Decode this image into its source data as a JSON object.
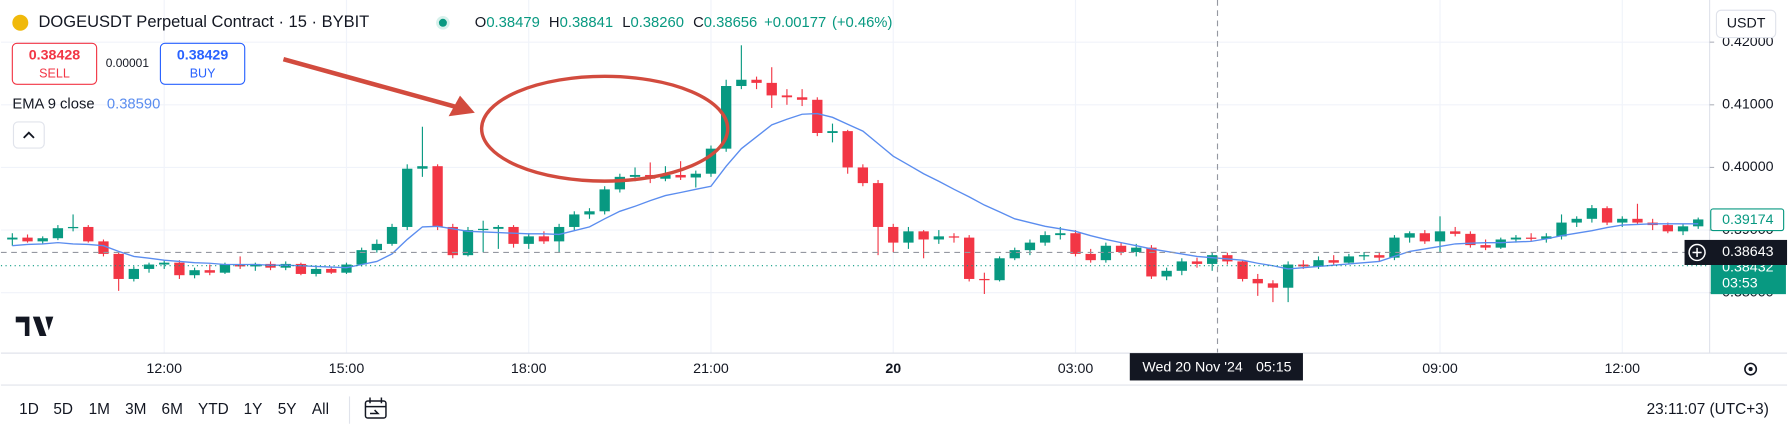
{
  "chart_data": {
    "type": "candlestick",
    "title": "DOGEUSDT Perpetual Contract · 15 · BYBIT",
    "ohlc_legend": [
      {
        "key": "O",
        "value": "0.38479"
      },
      {
        "key": "H",
        "value": "0.38841"
      },
      {
        "key": "L",
        "value": "0.38260"
      },
      {
        "key": "C",
        "value": "0.38656"
      }
    ],
    "change": "+0.00177",
    "change_pct": "(+0.46%)",
    "up_color": "#089981",
    "down_color": "#f23645",
    "x": [
      null,
      null,
      null,
      null,
      null,
      null,
      null,
      null,
      null,
      null,
      "12:00",
      null,
      null,
      null,
      null,
      null,
      null,
      null,
      null,
      null,
      null,
      null,
      "15:00",
      null,
      null,
      null,
      null,
      null,
      null,
      null,
      null,
      null,
      null,
      null,
      "18:00",
      null,
      null,
      null,
      null,
      null,
      null,
      null,
      null,
      null,
      null,
      null,
      "21:00",
      null,
      null,
      null,
      null,
      null,
      null,
      null,
      null,
      null,
      null,
      null,
      "20",
      null,
      null,
      null,
      null,
      null,
      null,
      null,
      null,
      null,
      null,
      null,
      "03:00",
      null,
      null,
      null,
      null,
      null,
      null,
      null,
      null,
      null,
      null,
      null,
      null,
      null,
      null,
      null,
      null,
      null,
      null,
      null,
      null,
      null,
      null,
      null,
      "09:00",
      null,
      null,
      null,
      null,
      null,
      null,
      null,
      null,
      null,
      null,
      null,
      "12:00",
      null,
      null,
      null,
      null,
      null
    ],
    "open": [
      0.3885,
      0.3888,
      0.3882,
      0.3887,
      0.3903,
      0.3905,
      0.3882,
      0.3862,
      0.3822,
      0.3838,
      0.3845,
      0.3848,
      0.3828,
      0.3836,
      0.3832,
      0.3845,
      0.3842,
      0.3846,
      0.384,
      0.3846,
      0.383,
      0.3838,
      0.3832,
      0.3845,
      0.3868,
      0.3878,
      0.3905,
      0.3998,
      0.4002,
      0.3905,
      0.386,
      0.39,
      0.3902,
      0.3905,
      0.3878,
      0.389,
      0.3882,
      0.3905,
      0.3925,
      0.393,
      0.3965,
      0.3985,
      0.3988,
      0.3982,
      0.3988,
      0.3984,
      0.399,
      0.403,
      0.413,
      0.414,
      0.4135,
      0.4115,
      0.4112,
      0.4108,
      0.4055,
      0.4058,
      0.4,
      0.3975,
      0.3905,
      0.388,
      0.3898,
      0.3885,
      0.389,
      0.3888,
      0.3822,
      0.382,
      0.3855,
      0.3868,
      0.388,
      0.3892,
      0.3895,
      0.3862,
      0.3852,
      0.3875,
      0.3865,
      0.3872,
      0.3826,
      0.3835,
      0.385,
      0.3846,
      0.386,
      0.385,
      0.3822,
      0.3815,
      0.3808,
      0.3845,
      0.3842,
      0.3852,
      0.3848,
      0.3858,
      0.386,
      0.3856,
      0.3888,
      0.3895,
      0.3882,
      0.3898,
      0.3894,
      0.3876,
      0.3872,
      0.3885,
      0.3888,
      0.3886,
      0.389,
      0.3912,
      0.3918,
      0.3935,
      0.3912,
      0.3918,
      0.3912,
      0.3908,
      0.3898,
      0.3906
    ],
    "high": [
      0.3895,
      0.3893,
      0.389,
      0.3908,
      0.3925,
      0.3908,
      0.3885,
      0.3865,
      0.3842,
      0.3848,
      0.3852,
      0.3852,
      0.384,
      0.3845,
      0.3848,
      0.3858,
      0.3848,
      0.385,
      0.385,
      0.3848,
      0.3842,
      0.3842,
      0.3848,
      0.3872,
      0.3885,
      0.391,
      0.4005,
      0.4065,
      0.4005,
      0.391,
      0.3905,
      0.3915,
      0.3908,
      0.3908,
      0.3895,
      0.3898,
      0.391,
      0.393,
      0.3935,
      0.397,
      0.399,
      0.4,
      0.4008,
      0.4002,
      0.401,
      0.3995,
      0.4035,
      0.414,
      0.4195,
      0.4145,
      0.416,
      0.4125,
      0.4125,
      0.4112,
      0.407,
      0.406,
      0.4005,
      0.398,
      0.391,
      0.3905,
      0.39,
      0.39,
      0.3895,
      0.3892,
      0.3832,
      0.3858,
      0.3872,
      0.3885,
      0.3898,
      0.3905,
      0.39,
      0.387,
      0.388,
      0.388,
      0.3878,
      0.3876,
      0.384,
      0.3855,
      0.3856,
      0.3865,
      0.3864,
      0.3852,
      0.383,
      0.382,
      0.385,
      0.3852,
      0.3858,
      0.386,
      0.3862,
      0.3865,
      0.3864,
      0.3892,
      0.3898,
      0.39,
      0.3922,
      0.3905,
      0.3898,
      0.3885,
      0.3888,
      0.3892,
      0.3895,
      0.3895,
      0.3925,
      0.3922,
      0.394,
      0.3938,
      0.3922,
      0.3942,
      0.3918,
      0.3912,
      0.391,
      0.392
    ],
    "low": [
      0.3875,
      0.388,
      0.3878,
      0.3884,
      0.3898,
      0.388,
      0.3858,
      0.3803,
      0.3818,
      0.3832,
      0.3838,
      0.3822,
      0.3823,
      0.3828,
      0.383,
      0.3838,
      0.3835,
      0.3836,
      0.3836,
      0.3828,
      0.3826,
      0.383,
      0.383,
      0.3842,
      0.3864,
      0.3875,
      0.39,
      0.3985,
      0.39,
      0.3855,
      0.3858,
      0.3865,
      0.387,
      0.3872,
      0.387,
      0.3878,
      0.3865,
      0.39,
      0.3918,
      0.3925,
      0.396,
      0.3978,
      0.3975,
      0.3978,
      0.398,
      0.3968,
      0.3985,
      0.4025,
      0.4125,
      0.4125,
      0.4095,
      0.41,
      0.4098,
      0.405,
      0.404,
      0.399,
      0.397,
      0.386,
      0.3865,
      0.387,
      0.3855,
      0.3878,
      0.388,
      0.3818,
      0.3798,
      0.3818,
      0.3852,
      0.386,
      0.3875,
      0.3885,
      0.3858,
      0.3848,
      0.3848,
      0.386,
      0.3858,
      0.3822,
      0.382,
      0.3828,
      0.384,
      0.3835,
      0.3845,
      0.3818,
      0.3795,
      0.3785,
      0.3785,
      0.3838,
      0.3838,
      0.3845,
      0.3845,
      0.3852,
      0.385,
      0.3852,
      0.388,
      0.3878,
      0.3865,
      0.389,
      0.3872,
      0.3868,
      0.387,
      0.388,
      0.3882,
      0.388,
      0.3885,
      0.3905,
      0.3912,
      0.3908,
      0.3905,
      0.391,
      0.39,
      0.3895,
      0.3892,
      0.3902
    ],
    "close": [
      0.3888,
      0.3882,
      0.3887,
      0.3903,
      0.3905,
      0.3882,
      0.3862,
      0.3822,
      0.3838,
      0.3845,
      0.3848,
      0.3828,
      0.3836,
      0.3832,
      0.3845,
      0.3842,
      0.3846,
      0.384,
      0.3846,
      0.383,
      0.3838,
      0.3832,
      0.3845,
      0.3868,
      0.3878,
      0.3905,
      0.3998,
      0.4002,
      0.3905,
      0.386,
      0.39,
      0.3902,
      0.3905,
      0.3878,
      0.389,
      0.3882,
      0.3905,
      0.3925,
      0.393,
      0.3965,
      0.3985,
      0.3988,
      0.3982,
      0.3988,
      0.3984,
      0.399,
      0.403,
      0.413,
      0.414,
      0.4135,
      0.4115,
      0.4112,
      0.4108,
      0.4055,
      0.4058,
      0.4,
      0.3975,
      0.3905,
      0.388,
      0.3898,
      0.3885,
      0.389,
      0.3888,
      0.3822,
      0.382,
      0.3855,
      0.3868,
      0.388,
      0.3892,
      0.3895,
      0.3862,
      0.3852,
      0.3875,
      0.3865,
      0.3872,
      0.3826,
      0.3835,
      0.385,
      0.3846,
      0.386,
      0.385,
      0.3822,
      0.3815,
      0.3808,
      0.3845,
      0.3842,
      0.3852,
      0.3848,
      0.3858,
      0.386,
      0.3856,
      0.3888,
      0.3895,
      0.3882,
      0.3898,
      0.3894,
      0.3876,
      0.3872,
      0.3885,
      0.3888,
      0.3886,
      0.389,
      0.3912,
      0.3918,
      0.3935,
      0.3912,
      0.3918,
      0.3912,
      0.3908,
      0.3898,
      0.3906,
      0.3917
    ],
    "ema": {
      "name": "EMA 9 close",
      "value": 0.3859,
      "value_label": "0.38590",
      "color": "#5b8def",
      "values": [
        0.3875,
        0.3877,
        0.3878,
        0.388,
        0.3878,
        0.3877,
        0.3875,
        0.3866,
        0.3858,
        0.3855,
        0.3852,
        0.385,
        0.3848,
        0.3847,
        0.3845,
        0.3845,
        0.3845,
        0.3844,
        0.3844,
        0.3843,
        0.3842,
        0.3841,
        0.384,
        0.3845,
        0.385,
        0.3862,
        0.3885,
        0.3905,
        0.3906,
        0.3902,
        0.3898,
        0.3897,
        0.3896,
        0.3895,
        0.3894,
        0.3894,
        0.3893,
        0.3899,
        0.3905,
        0.3918,
        0.393,
        0.3938,
        0.3947,
        0.3955,
        0.396,
        0.3965,
        0.397,
        0.4002,
        0.403,
        0.4049,
        0.4068,
        0.4077,
        0.4085,
        0.4086,
        0.408,
        0.4069,
        0.4058,
        0.4038,
        0.4018,
        0.4004,
        0.399,
        0.3978,
        0.3965,
        0.3953,
        0.394,
        0.3929,
        0.3918,
        0.3912,
        0.3906,
        0.3902,
        0.3898,
        0.3891,
        0.3885,
        0.388,
        0.3875,
        0.387,
        0.3866,
        0.3862,
        0.3858,
        0.3856,
        0.3854,
        0.3852,
        0.3847,
        0.3843,
        0.3838,
        0.384,
        0.3842,
        0.3844,
        0.3846,
        0.3848,
        0.385,
        0.3858,
        0.3866,
        0.387,
        0.3874,
        0.3878,
        0.3879,
        0.388,
        0.388,
        0.3881,
        0.3882,
        0.3886,
        0.3891,
        0.3895,
        0.3899,
        0.3904,
        0.3908,
        0.3909,
        0.391,
        0.391,
        0.391,
        0.391
      ]
    },
    "ylim": [
      0.37036,
      0.42673
    ],
    "yticks": [
      {
        "value": 0.42,
        "label": "0.42000"
      },
      {
        "value": 0.41,
        "label": "0.41000"
      },
      {
        "value": 0.4,
        "label": "0.40000"
      },
      {
        "value": 0.39,
        "label": "0.39000"
      },
      {
        "value": 0.38,
        "label": "0.38000"
      }
    ],
    "grid": true,
    "currency": "USDT",
    "price_labels": [
      {
        "value": 0.39174,
        "label": "0.39174",
        "color": "#089981"
      },
      {
        "value": 0.38432,
        "label": "0.38432",
        "countdown": "03:53",
        "color": "#089981"
      }
    ],
    "crosshair": {
      "price": {
        "value": 0.38643,
        "label": "0.38643"
      },
      "date": "Wed 20 Nov '24",
      "time": "05:15"
    },
    "trade": {
      "sell_price": "0.38428",
      "sell": "SELL",
      "spread": "0.00001",
      "buy_price": "0.38429",
      "buy": "BUY"
    }
  },
  "toolbar": {
    "ranges": [
      "1D",
      "5D",
      "1M",
      "3M",
      "6M",
      "YTD",
      "1Y",
      "5Y",
      "All"
    ],
    "clock": "23:11:07 (UTC+3)"
  }
}
